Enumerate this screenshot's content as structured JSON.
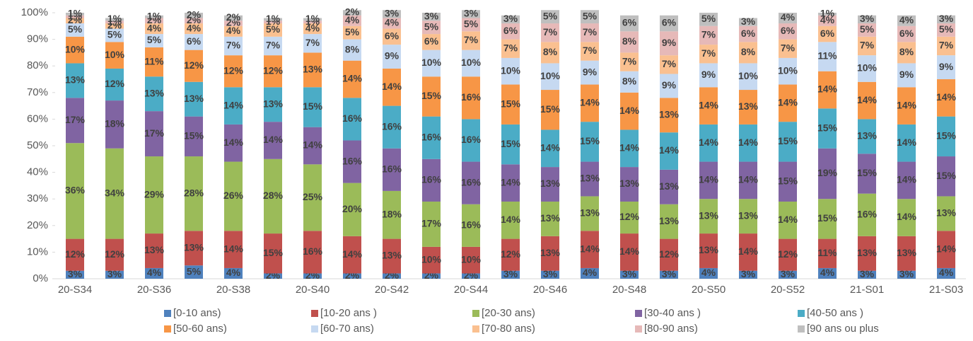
{
  "chart_data": {
    "type": "stacked-bar",
    "categories": [
      "20-S34",
      null,
      "20-S36",
      null,
      "20-S38",
      null,
      "20-S40",
      null,
      "20-S42",
      null,
      "20-S44",
      null,
      "20-S46",
      null,
      "20-S48",
      null,
      "20-S50",
      null,
      "20-S52",
      null,
      "21-S01",
      null,
      "21-S03"
    ],
    "ylim": [
      0,
      100
    ],
    "yticks": [
      {
        "value": 0,
        "label": "0%"
      },
      {
        "value": 10,
        "label": "10%"
      },
      {
        "value": 20,
        "label": "20%"
      },
      {
        "value": 30,
        "label": "30%"
      },
      {
        "value": 40,
        "label": "40%"
      },
      {
        "value": 50,
        "label": "50%"
      },
      {
        "value": 60,
        "label": "60%"
      },
      {
        "value": 70,
        "label": "70%"
      },
      {
        "value": 80,
        "label": "80%"
      },
      {
        "value": 90,
        "label": "90%"
      },
      {
        "value": 100,
        "label": "100%"
      }
    ],
    "grid": false,
    "series": [
      {
        "name": "[0-10 ans)",
        "color": "#4f81bd",
        "values": [
          3,
          3,
          4,
          5,
          4,
          2,
          2,
          2,
          2,
          2,
          2,
          3,
          3,
          4,
          3,
          3,
          4,
          3,
          3,
          4,
          3,
          3,
          4
        ],
        "value_labels": [
          "3%",
          "3%",
          "4%",
          "5%",
          "4%",
          "2%",
          "2%",
          "2%",
          "2%",
          "2%",
          "2%",
          "3%",
          "3%",
          "4%",
          "3%",
          "3%",
          "4%",
          "3%",
          "3%",
          "4%",
          "3%",
          "3%",
          "4%"
        ]
      },
      {
        "name": "[10-20 ans )",
        "color": "#c0504d",
        "values": [
          12,
          12,
          13,
          13,
          14,
          15,
          16,
          14,
          13,
          10,
          10,
          12,
          13,
          14,
          14,
          12,
          13,
          14,
          12,
          11,
          13,
          13,
          14
        ],
        "value_labels": [
          "12%",
          "12%",
          "13%",
          "13%",
          "14%",
          "15%",
          "16%",
          "14%",
          "13%",
          "10%",
          "10%",
          "12%",
          "13%",
          "14%",
          "14%",
          "12%",
          "13%",
          "14%",
          "12%",
          "11%",
          "13%",
          "13%",
          "14%"
        ]
      },
      {
        "name": "[20-30 ans)",
        "color": "#9bbb59",
        "values": [
          36,
          34,
          29,
          28,
          26,
          28,
          25,
          20,
          18,
          17,
          16,
          14,
          13,
          13,
          12,
          13,
          13,
          13,
          14,
          15,
          16,
          14,
          13
        ],
        "value_labels": [
          "36%",
          "34%",
          "29%",
          "28%",
          "26%",
          "28%",
          "25%",
          "20%",
          "18%",
          "17%",
          "16%",
          "14%",
          "13%",
          "13%",
          "12%",
          "13%",
          "13%",
          "13%",
          "14%",
          "15%",
          "16%",
          "14%",
          "13%"
        ]
      },
      {
        "name": "[30-40 ans )",
        "color": "#8064a2",
        "values": [
          17,
          18,
          17,
          15,
          14,
          14,
          14,
          16,
          16,
          16,
          16,
          14,
          13,
          13,
          13,
          13,
          14,
          14,
          15,
          19,
          15,
          14,
          15
        ],
        "value_labels": [
          "17%",
          "18%",
          "17%",
          "15%",
          "14%",
          "14%",
          "14%",
          "16%",
          "16%",
          "16%",
          "16%",
          "14%",
          "13%",
          "13%",
          "13%",
          "13%",
          "14%",
          "14%",
          "15%",
          "19%",
          "15%",
          "14%",
          "15%"
        ]
      },
      {
        "name": "[40-50 ans )",
        "color": "#4bacc6",
        "values": [
          13,
          12,
          13,
          13,
          14,
          13,
          15,
          16,
          16,
          16,
          16,
          15,
          14,
          15,
          14,
          14,
          14,
          14,
          15,
          15,
          13,
          14,
          15
        ],
        "value_labels": [
          "13%",
          "12%",
          "13%",
          "13%",
          "14%",
          "13%",
          "15%",
          "16%",
          "16%",
          "16%",
          "16%",
          "15%",
          "14%",
          "15%",
          "14%",
          "14%",
          "14%",
          "14%",
          "15%",
          "15%",
          "13%",
          "14%",
          "15%"
        ]
      },
      {
        "name": "[50-60 ans)",
        "color": "#f79646",
        "values": [
          10,
          10,
          11,
          12,
          12,
          12,
          13,
          14,
          14,
          15,
          16,
          15,
          15,
          14,
          14,
          13,
          14,
          13,
          14,
          14,
          14,
          14,
          14
        ],
        "value_labels": [
          "10%",
          "10%",
          "11%",
          "12%",
          "12%",
          "12%",
          "13%",
          "14%",
          "14%",
          "15%",
          "16%",
          "15%",
          "15%",
          "14%",
          "14%",
          "13%",
          "14%",
          "13%",
          "14%",
          "14%",
          "14%",
          "14%",
          "14%"
        ]
      },
      {
        "name": "[60-70 ans)",
        "color": "#c6d9f1",
        "values": [
          5,
          5,
          5,
          6,
          7,
          7,
          7,
          8,
          9,
          10,
          10,
          10,
          10,
          9,
          8,
          9,
          9,
          10,
          10,
          11,
          10,
          9,
          9
        ],
        "value_labels": [
          "5%",
          "5%",
          "5%",
          "6%",
          "7%",
          "7%",
          "7%",
          "8%",
          "9%",
          "10%",
          "10%",
          "10%",
          "10%",
          "9%",
          "8%",
          "9%",
          "9%",
          "10%",
          "10%",
          "11%",
          "10%",
          "9%",
          "9%"
        ]
      },
      {
        "name": "[70-80 ans)",
        "color": "#fac090",
        "values": [
          2,
          2,
          4,
          4,
          4,
          5,
          4,
          5,
          6,
          6,
          7,
          7,
          8,
          7,
          7,
          7,
          7,
          8,
          7,
          6,
          7,
          8,
          7
        ],
        "value_labels": [
          "2%",
          "2%",
          "4%",
          "4%",
          "4%",
          "5%",
          "4%",
          "5%",
          "6%",
          "6%",
          "7%",
          "7%",
          "8%",
          "7%",
          "7%",
          "7%",
          "7%",
          "8%",
          "7%",
          "6%",
          "7%",
          "8%",
          "7%"
        ]
      },
      {
        "name": "[80-90 ans)",
        "color": "#e6b9b8",
        "values": [
          1,
          1,
          2,
          2,
          2,
          1,
          1,
          4,
          4,
          5,
          5,
          6,
          7,
          7,
          8,
          9,
          7,
          6,
          6,
          4,
          5,
          6,
          5
        ],
        "value_labels": [
          "1%",
          "1%",
          "2%",
          "2%",
          "2%",
          "1%",
          "1%",
          "4%",
          "4%",
          "5%",
          "5%",
          "6%",
          "7%",
          "7%",
          "8%",
          "9%",
          "7%",
          "6%",
          "6%",
          "4%",
          "5%",
          "6%",
          "5%"
        ]
      },
      {
        "name": "[90 ans ou plus",
        "color": "#bfbfbf",
        "values": [
          1,
          1,
          1,
          2,
          2,
          1,
          1,
          2,
          3,
          3,
          3,
          3,
          5,
          5,
          6,
          6,
          5,
          3,
          4,
          1,
          3,
          4,
          3
        ],
        "value_labels": [
          "1%",
          "1%",
          "1%",
          "2%",
          "2%",
          "1%",
          "1%",
          "2%",
          "3%",
          "3%",
          "3%",
          "3%",
          "5%",
          "5%",
          "6%",
          "6%",
          "5%",
          "3%",
          "4%",
          "1%",
          "3%",
          "4%",
          "3%"
        ]
      }
    ]
  }
}
